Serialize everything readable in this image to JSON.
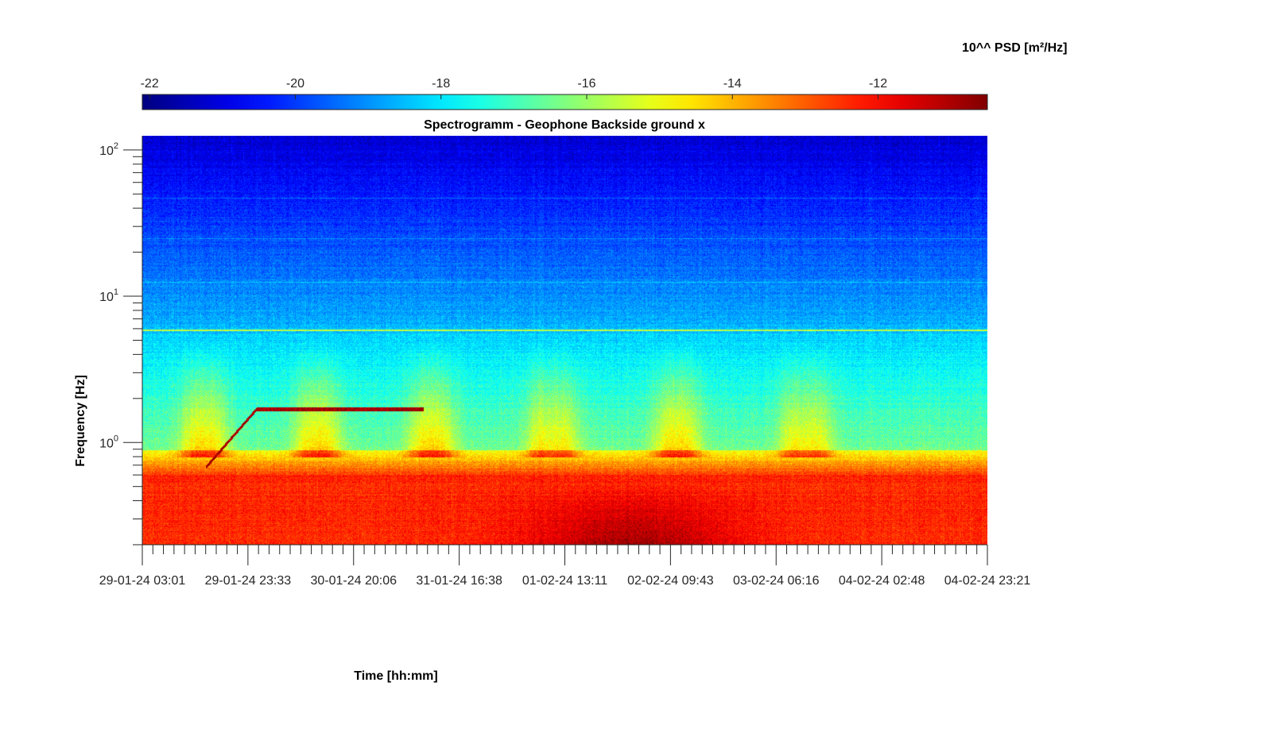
{
  "chart_data": {
    "type": "heatmap",
    "title": "Spectrogramm - Geophone Backside ground x",
    "xlabel": "Time [hh:mm]",
    "ylabel": "Frequency [Hz]",
    "x_tick_labels": [
      "29-01-24 03:01",
      "29-01-24 23:33",
      "30-01-24 20:06",
      "31-01-24 16:38",
      "01-02-24 13:11",
      "02-02-24 09:43",
      "03-02-24 06:16",
      "04-02-24 02:48",
      "04-02-24 23:21"
    ],
    "y_scale": "log",
    "y_ticks": [
      1,
      10,
      100
    ],
    "y_tick_labels": [
      {
        "base": "10",
        "exp": "0"
      },
      {
        "base": "10",
        "exp": "1"
      },
      {
        "base": "10",
        "exp": "2"
      }
    ],
    "ylim": [
      0.2,
      125
    ],
    "colorbar": {
      "label": "10^^ PSD [m²/Hz]",
      "location": "top",
      "colormap": "jet",
      "ticks": [
        -22,
        -20,
        -18,
        -16,
        -14,
        -12
      ],
      "tick_labels": [
        "-22",
        "-20",
        "-18",
        "-16",
        "-14",
        "-12"
      ],
      "clim": [
        -22.1,
        -10.5
      ]
    },
    "features": {
      "persistent_line_hz": 5.9,
      "secondary_lines_hz": [
        12.5,
        25,
        47
      ],
      "sweep": {
        "start_hz": 0.68,
        "end_hz": 1.7,
        "x_start_frac": 0.075,
        "x_ramp_end_frac": 0.135,
        "x_end_frac": 0.333
      }
    }
  }
}
